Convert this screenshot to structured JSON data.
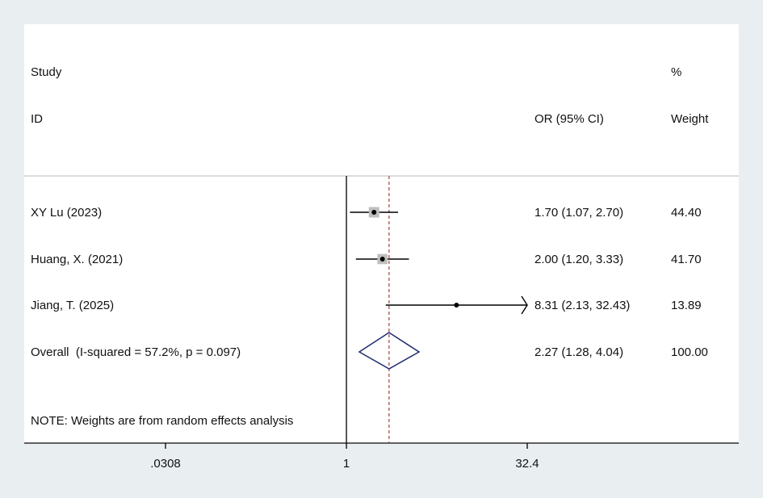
{
  "header": {
    "study_line1": "Study",
    "study_line2": "ID",
    "or_label": "OR (95% CI)",
    "weight_line1": "%",
    "weight_line2": "Weight"
  },
  "note": "NOTE: Weights are from random effects analysis",
  "colors": {
    "background": "#e9eef1",
    "panel": "#ffffff",
    "line": "#000000",
    "box": "#bfbfbf",
    "diamond": "#1f2a6e",
    "ref_line": "#a0443c"
  },
  "chart_data": {
    "type": "forest",
    "x_scale": "log",
    "x_ticks": [
      {
        "value": 0.0308,
        "label": ".0308"
      },
      {
        "value": 1,
        "label": "1"
      },
      {
        "value": 32.4,
        "label": "32.4"
      }
    ],
    "xlim": [
      0.0308,
      32.4
    ],
    "null_line": 1,
    "studies": [
      {
        "label": "XY Lu (2023)",
        "or": 1.7,
        "lo": 1.07,
        "hi": 2.7,
        "ci_text": "1.70 (1.07, 2.70)",
        "weight": "44.40"
      },
      {
        "label": "Huang, X. (2021)",
        "or": 2.0,
        "lo": 1.2,
        "hi": 3.33,
        "ci_text": "2.00 (1.20, 3.33)",
        "weight": "41.70"
      },
      {
        "label": "Jiang, T. (2025)",
        "or": 8.31,
        "lo": 2.13,
        "hi": 32.43,
        "ci_text": "8.31 (2.13, 32.43)",
        "weight": "13.89",
        "arrow_right": true
      }
    ],
    "overall": {
      "label": "Overall  (I-squared = 57.2%, p = 0.097)",
      "or": 2.27,
      "lo": 1.28,
      "hi": 4.04,
      "ci_text": "2.27 (1.28, 4.04)",
      "weight": "100.00"
    }
  }
}
